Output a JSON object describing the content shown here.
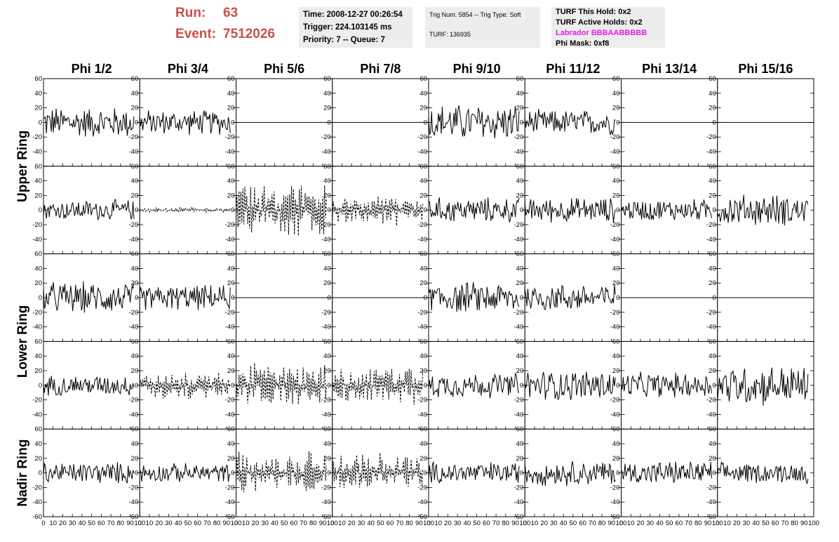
{
  "header": {
    "run_label": "Run:",
    "run_value": "63",
    "event_label": "Event:",
    "event_value": "7512026"
  },
  "time_box": {
    "time": "Time: 2008-12-27 00:26:54",
    "trigger": "Trigger: 224.103145 ms",
    "priority": "Priority: 7 -- Queue: 7"
  },
  "trig_box": {
    "trig": "Trig Num: 5854 -- Trig Type: Soft",
    "turf": "TURF: 136935"
  },
  "turf_box": {
    "this_hold": "TURF This Hold: 0x2",
    "active_holds": "TURF Active Holds: 0x2",
    "labrador": "Labrador BBBAABBBBB",
    "phi_mask": "Phi Mask: 0xf8",
    "labrador_color": "#e020e0"
  },
  "chart_data": {
    "type": "line",
    "columns": [
      "Phi 1/2",
      "Phi 3/4",
      "Phi 5/6",
      "Phi 7/8",
      "Phi 9/10",
      "Phi 11/12",
      "Phi 13/14",
      "Phi 15/16"
    ],
    "ring_labels": [
      "Upper Ring",
      "Lower Ring",
      "Nadir Ring"
    ],
    "panel_rows": 5,
    "xlim": [
      0,
      100
    ],
    "ylim": [
      -60,
      60
    ],
    "x_ticks": [
      0,
      10,
      20,
      30,
      40,
      50,
      60,
      70,
      80,
      90,
      100
    ],
    "y_ticks": [
      -60,
      -40,
      -20,
      0,
      20,
      40,
      60
    ],
    "samples_per_trace": 94,
    "line_color": "#000000",
    "panels": [
      [
        {
          "amplitude": 20,
          "style": "solid"
        },
        {
          "amplitude": 16,
          "style": "solid"
        },
        {
          "amplitude": 0,
          "style": "flat"
        },
        {
          "amplitude": 0,
          "style": "flat"
        },
        {
          "amplitude": 24,
          "style": "solid"
        },
        {
          "amplitude": 16,
          "style": "solid"
        },
        {
          "amplitude": 0,
          "style": "flat"
        },
        {
          "amplitude": 0,
          "style": "flat"
        }
      ],
      [
        {
          "amplitude": 13,
          "style": "solid"
        },
        {
          "amplitude": 3,
          "style": "dashed"
        },
        {
          "amplitude": 34,
          "style": "dashed"
        },
        {
          "amplitude": 20,
          "style": "dashed"
        },
        {
          "amplitude": 16,
          "style": "solid"
        },
        {
          "amplitude": 16,
          "style": "solid"
        },
        {
          "amplitude": 14,
          "style": "solid"
        },
        {
          "amplitude": 20,
          "style": "solid"
        }
      ],
      [
        {
          "amplitude": 20,
          "style": "solid"
        },
        {
          "amplitude": 16,
          "style": "solid"
        },
        {
          "amplitude": 0,
          "style": "flat"
        },
        {
          "amplitude": 0,
          "style": "flat"
        },
        {
          "amplitude": 20,
          "style": "solid"
        },
        {
          "amplitude": 18,
          "style": "solid"
        },
        {
          "amplitude": 0,
          "style": "flat"
        },
        {
          "amplitude": 0,
          "style": "flat"
        }
      ],
      [
        {
          "amplitude": 13,
          "style": "solid"
        },
        {
          "amplitude": 18,
          "style": "dashed"
        },
        {
          "amplitude": 28,
          "style": "dashed"
        },
        {
          "amplitude": 24,
          "style": "dashed"
        },
        {
          "amplitude": 16,
          "style": "solid"
        },
        {
          "amplitude": 20,
          "style": "solid"
        },
        {
          "amplitude": 16,
          "style": "solid"
        },
        {
          "amplitude": 26,
          "style": "solid"
        }
      ],
      [
        {
          "amplitude": 14,
          "style": "solid"
        },
        {
          "amplitude": 12,
          "style": "solid"
        },
        {
          "amplitude": 26,
          "style": "dashed"
        },
        {
          "amplitude": 24,
          "style": "dashed"
        },
        {
          "amplitude": 14,
          "style": "solid"
        },
        {
          "amplitude": 16,
          "style": "solid"
        },
        {
          "amplitude": 15,
          "style": "solid"
        },
        {
          "amplitude": 13,
          "style": "solid"
        }
      ]
    ]
  }
}
